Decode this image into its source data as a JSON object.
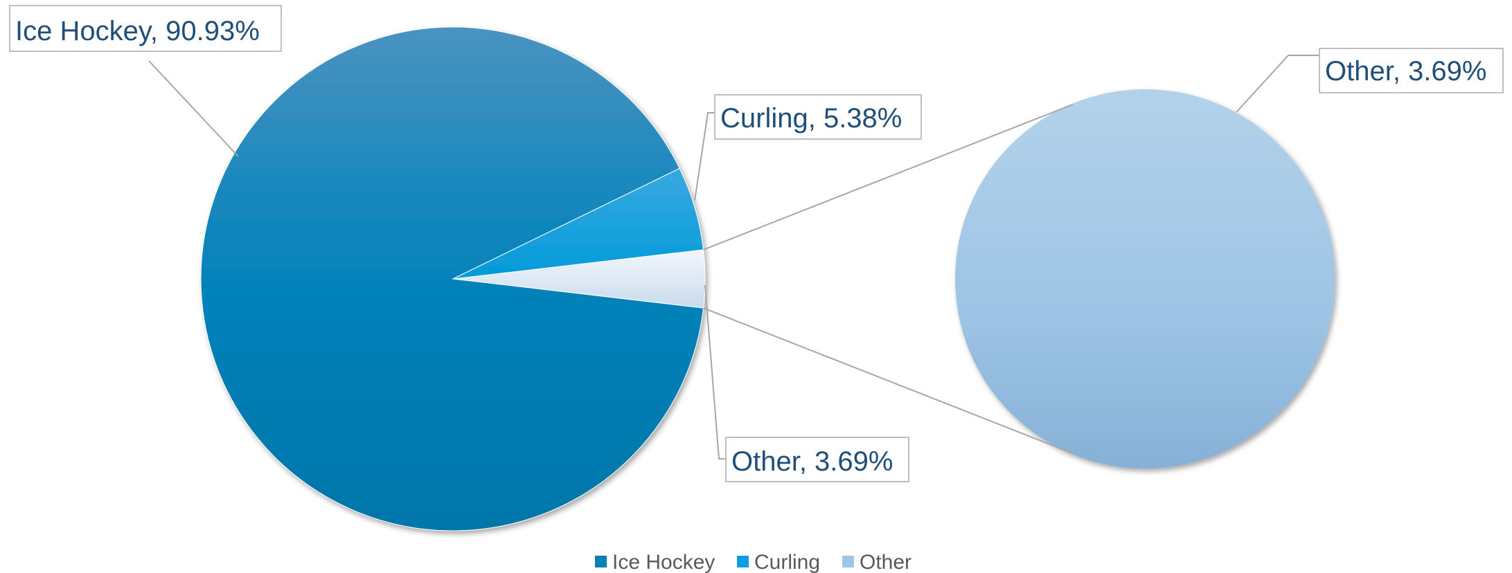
{
  "chart_data": {
    "type": "pie",
    "subtype": "pie-of-pie",
    "title": "",
    "categories": [
      "Ice Hockey",
      "Curling",
      "Other"
    ],
    "values": [
      90.93,
      5.38,
      3.69
    ],
    "unit": "%",
    "data_labels": [
      {
        "category": "Ice Hockey",
        "text": "Ice Hockey, 90.93%"
      },
      {
        "category": "Curling",
        "text": "Curling, 5.38%"
      },
      {
        "category": "Other",
        "text": "Other, 3.69%"
      }
    ],
    "secondary_pie": {
      "categories": [
        "Other"
      ],
      "values": [
        3.69
      ],
      "data_labels": [
        {
          "category": "Other",
          "text": "Other, 3.69%"
        }
      ]
    },
    "legend": {
      "position": "bottom",
      "entries": [
        "Ice Hockey",
        "Curling",
        "Other"
      ]
    },
    "colors": {
      "Ice Hockey": "#0a7fb6",
      "Curling": "#0a9fdf",
      "Other": "#dce9f5",
      "secondary_other": "#9fc6e6"
    }
  }
}
